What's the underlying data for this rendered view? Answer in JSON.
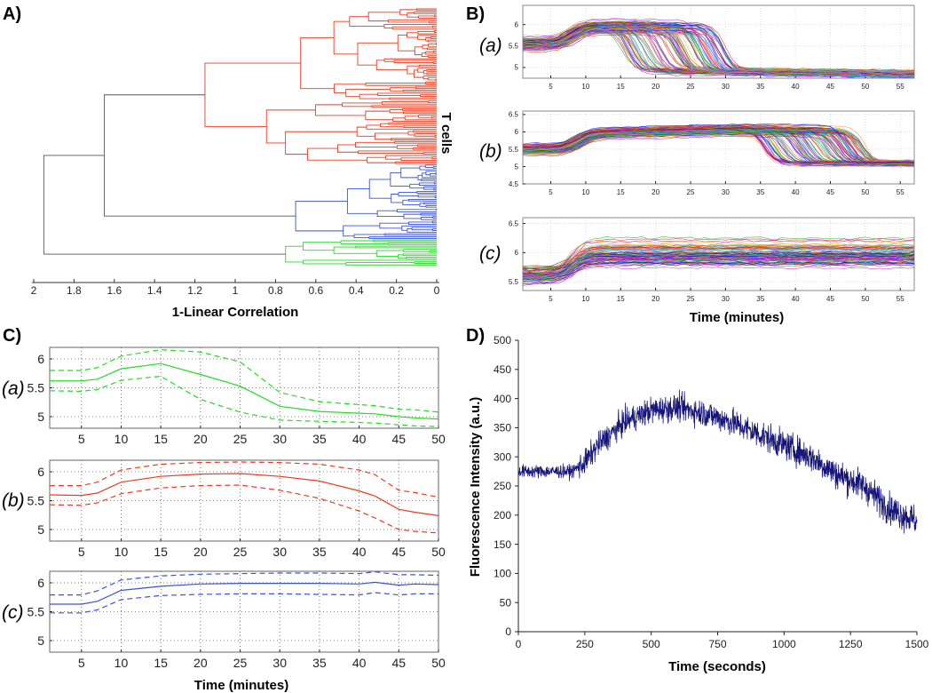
{
  "panel_labels": {
    "a": "A)",
    "b": "B)",
    "c": "C)",
    "d": "D)"
  },
  "colors": {
    "red": "#ee3b1f",
    "blue": "#3a52e0",
    "green": "#22dd22",
    "gray": "#555555",
    "navy": "#15157a"
  },
  "chart_data": [
    {
      "id": "A",
      "type": "dendrogram",
      "xlabel": "1-Linear Correlation",
      "xticks": [
        "2",
        "1.8",
        "1.6",
        "1.4",
        "1.2",
        "1",
        "0.8",
        "0.6",
        "0.4",
        "0.2",
        "0"
      ],
      "xlim": [
        2,
        0
      ],
      "cluster_label": "T cells",
      "clusters": [
        {
          "name": "red",
          "leaf_count": 100,
          "merge_height": 1.15
        },
        {
          "name": "blue",
          "leaf_count": 48,
          "merge_height": 0.7
        },
        {
          "name": "green",
          "leaf_count": 17,
          "merge_height": 0.75
        }
      ],
      "merges": [
        {
          "join": "red+blue",
          "height": 1.65
        },
        {
          "join": "all",
          "height": 1.95
        }
      ]
    },
    {
      "id": "B",
      "type": "line",
      "xlabel": "Time (minutes)",
      "xticks": [
        "5",
        "10",
        "15",
        "20",
        "25",
        "30",
        "35",
        "40",
        "45",
        "50",
        "55"
      ],
      "xlim": [
        1,
        57
      ],
      "grid": true,
      "subplots": [
        {
          "label": "(a)",
          "ylim": [
            4.75,
            6.45
          ],
          "yticks": [
            "5",
            "5.5",
            "6"
          ],
          "traces": 120,
          "start": 5.55,
          "plateau": 5.95,
          "rise_time": 8,
          "drop_time_range": [
            15,
            30
          ],
          "end": 4.92
        },
        {
          "label": "(b)",
          "ylim": [
            4.5,
            6.6
          ],
          "yticks": [
            "4.5",
            "5",
            "5.5",
            "6",
            "6.5"
          ],
          "traces": 140,
          "start": 5.5,
          "plateau": 5.95,
          "rise_time": 9,
          "drop_time_range": [
            35,
            50
          ],
          "end": 5.1
        },
        {
          "label": "(c)",
          "ylim": [
            5.35,
            6.6
          ],
          "yticks": [
            "5.5",
            "6",
            "6.5"
          ],
          "traces": 90,
          "start": 5.6,
          "plateau": 5.97,
          "rise_time": 8,
          "drop_time_range": null,
          "end": 5.95
        }
      ]
    },
    {
      "id": "C",
      "type": "line",
      "xlabel": "Time (minutes)",
      "xticks": [
        "5",
        "10",
        "15",
        "20",
        "25",
        "30",
        "35",
        "40",
        "45",
        "50"
      ],
      "yticks": [
        "5",
        "5.5",
        "6"
      ],
      "xlim": [
        1,
        50
      ],
      "ylim": [
        4.8,
        6.2
      ],
      "grid": true,
      "x": [
        1,
        5,
        7,
        10,
        15,
        20,
        25,
        30,
        35,
        40,
        42,
        45,
        47,
        50
      ],
      "subplots": [
        {
          "label": "(a)",
          "color": "green",
          "mean": [
            5.62,
            5.62,
            5.65,
            5.83,
            5.92,
            5.73,
            5.53,
            5.18,
            5.09,
            5.06,
            5.05,
            5.0,
            4.98,
            4.96
          ],
          "upper": [
            5.8,
            5.8,
            5.85,
            6.05,
            6.16,
            6.12,
            5.95,
            5.42,
            5.26,
            5.21,
            5.19,
            5.13,
            5.12,
            5.08
          ],
          "lower": [
            5.45,
            5.44,
            5.47,
            5.63,
            5.7,
            5.3,
            5.08,
            4.94,
            4.92,
            4.9,
            4.89,
            4.86,
            4.84,
            4.83
          ]
        },
        {
          "label": "(b)",
          "color": "red",
          "mean": [
            5.6,
            5.59,
            5.63,
            5.82,
            5.92,
            5.96,
            5.97,
            5.92,
            5.84,
            5.67,
            5.58,
            5.35,
            5.3,
            5.24
          ],
          "upper": [
            5.76,
            5.76,
            5.82,
            6.03,
            6.13,
            6.16,
            6.17,
            6.16,
            6.13,
            6.03,
            5.95,
            5.68,
            5.64,
            5.56
          ],
          "lower": [
            5.43,
            5.42,
            5.46,
            5.62,
            5.72,
            5.76,
            5.77,
            5.68,
            5.54,
            5.32,
            5.2,
            5.0,
            4.97,
            4.94
          ]
        },
        {
          "label": "(c)",
          "color": "blue",
          "mean": [
            5.63,
            5.63,
            5.68,
            5.87,
            5.94,
            5.98,
            5.99,
            5.99,
            5.99,
            5.98,
            6.01,
            5.96,
            5.98,
            5.97
          ],
          "upper": [
            5.79,
            5.79,
            5.86,
            6.05,
            6.12,
            6.15,
            6.16,
            6.17,
            6.17,
            6.16,
            6.19,
            6.14,
            6.14,
            6.13
          ],
          "lower": [
            5.48,
            5.48,
            5.53,
            5.71,
            5.78,
            5.8,
            5.81,
            5.81,
            5.8,
            5.79,
            5.83,
            5.79,
            5.81,
            5.81
          ]
        }
      ]
    },
    {
      "id": "D",
      "type": "line",
      "xlabel": "Time (seconds)",
      "ylabel": "Fluorescence Intensity (a.u.)",
      "xticks": [
        "0",
        "250",
        "500",
        "750",
        "1000",
        "1250",
        "1500"
      ],
      "yticks": [
        "0",
        "50",
        "100",
        "150",
        "200",
        "250",
        "300",
        "350",
        "400",
        "450",
        "500"
      ],
      "xlim": [
        0,
        1500
      ],
      "ylim": [
        0,
        500
      ],
      "grid": false,
      "trend_x": [
        0,
        100,
        200,
        250,
        300,
        400,
        500,
        600,
        700,
        800,
        900,
        1000,
        1100,
        1200,
        1300,
        1400,
        1500
      ],
      "trend_y": [
        275,
        275,
        275,
        290,
        320,
        360,
        380,
        385,
        375,
        360,
        340,
        320,
        300,
        270,
        250,
        210,
        190
      ],
      "noise_sd": 22
    }
  ]
}
